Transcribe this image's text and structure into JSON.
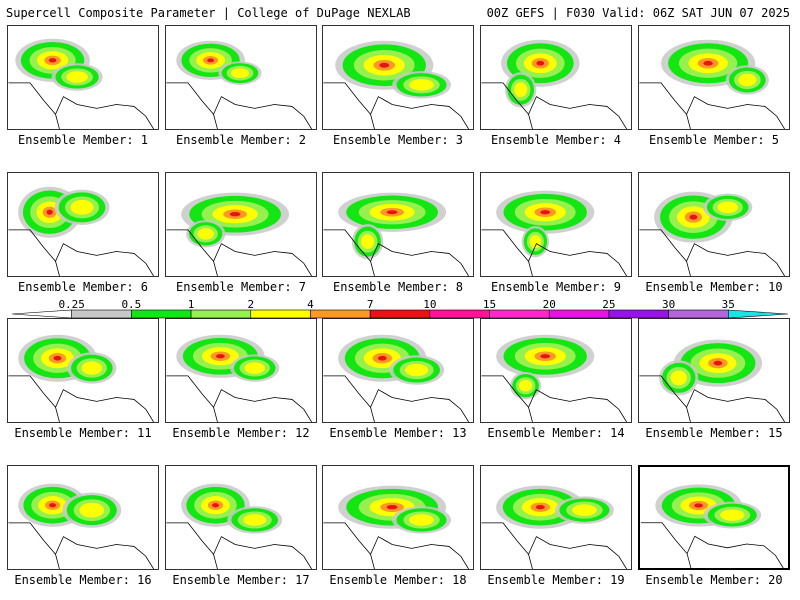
{
  "header": {
    "title": "Supercell Composite Parameter | College of DuPage NEXLAB",
    "valid": "00Z GEFS | F030 Valid: 06Z SAT JUN 07 2025"
  },
  "legend": {
    "ticks": [
      "0.25",
      "0.5",
      "1",
      "2",
      "4",
      "7",
      "10",
      "15",
      "20",
      "25",
      "30",
      "35"
    ],
    "colors": [
      "#ffffff",
      "#c8c8c8",
      "#14e614",
      "#96f050",
      "#ffff00",
      "#ff9628",
      "#e61414",
      "#ff1496",
      "#ff28c8",
      "#e614e6",
      "#9614e6",
      "#b464dc",
      "#14e6e6"
    ]
  },
  "members": [
    {
      "label": "Ensemble Member: 1",
      "selected": false
    },
    {
      "label": "Ensemble Member: 2",
      "selected": false
    },
    {
      "label": "Ensemble Member: 3",
      "selected": false
    },
    {
      "label": "Ensemble Member: 4",
      "selected": false
    },
    {
      "label": "Ensemble Member: 5",
      "selected": false
    },
    {
      "label": "Ensemble Member: 6",
      "selected": false
    },
    {
      "label": "Ensemble Member: 7",
      "selected": false
    },
    {
      "label": "Ensemble Member: 8",
      "selected": false
    },
    {
      "label": "Ensemble Member: 9",
      "selected": false
    },
    {
      "label": "Ensemble Member: 10",
      "selected": false
    },
    {
      "label": "Ensemble Member: 11",
      "selected": false
    },
    {
      "label": "Ensemble Member: 12",
      "selected": false
    },
    {
      "label": "Ensemble Member: 13",
      "selected": false
    },
    {
      "label": "Ensemble Member: 14",
      "selected": false
    },
    {
      "label": "Ensemble Member: 15",
      "selected": false
    },
    {
      "label": "Ensemble Member: 16",
      "selected": false
    },
    {
      "label": "Ensemble Member: 17",
      "selected": false
    },
    {
      "label": "Ensemble Member: 18",
      "selected": false
    },
    {
      "label": "Ensemble Member: 19",
      "selected": false
    },
    {
      "label": "Ensemble Member: 20",
      "selected": true
    }
  ]
}
